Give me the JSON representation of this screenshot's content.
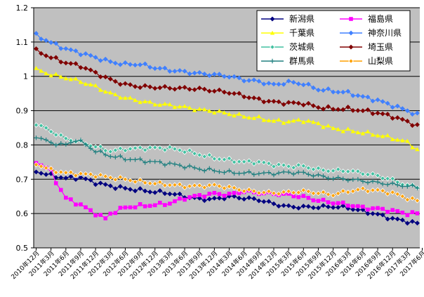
{
  "chart_data": {
    "type": "line",
    "title": "",
    "xlabel": "",
    "ylabel": "",
    "ylim": [
      0.5,
      1.2
    ],
    "yticks": [
      "0.5",
      "0.6",
      "0.7",
      "0.8",
      "0.9",
      "1",
      "1.1",
      "1.2"
    ],
    "grid": true,
    "plot_background": "#c0c0c0",
    "legend_position": "top-right",
    "x_start": "2010-12",
    "n_points": 78,
    "x_tick_labels": [
      "2010年12月",
      "2011年3月",
      "2011年6月",
      "2011年9月",
      "2011年12月",
      "2012年3月",
      "2012年6月",
      "2012年9月",
      "2012年12月",
      "2013年3月",
      "2013年6月",
      "2013年9月",
      "2013年12月",
      "2014年3月",
      "2014年6月",
      "2014年9月",
      "2014年12月",
      "2015年3月",
      "2015年6月",
      "2015年9月",
      "2015年12月",
      "2016年3月",
      "2016年6月",
      "2016年9月",
      "2016年12月",
      "2017年3月",
      "2017年6月"
    ],
    "series": [
      {
        "name": "新潟県",
        "color": "#000080",
        "marker": "diamond",
        "key_values": [
          [
            0,
            0.723
          ],
          [
            3,
            0.711
          ],
          [
            6,
            0.703
          ],
          [
            9,
            0.705
          ],
          [
            12,
            0.69
          ],
          [
            15,
            0.68
          ],
          [
            18,
            0.673
          ],
          [
            21,
            0.668
          ],
          [
            24,
            0.663
          ],
          [
            27,
            0.659
          ],
          [
            30,
            0.65
          ],
          [
            33,
            0.642
          ],
          [
            36,
            0.642
          ],
          [
            39,
            0.649
          ],
          [
            42,
            0.645
          ],
          [
            45,
            0.64
          ],
          [
            48,
            0.628
          ],
          [
            51,
            0.62
          ],
          [
            54,
            0.619
          ],
          [
            57,
            0.619
          ],
          [
            60,
            0.62
          ],
          [
            63,
            0.617
          ],
          [
            66,
            0.607
          ],
          [
            69,
            0.597
          ],
          [
            72,
            0.585
          ],
          [
            75,
            0.577
          ],
          [
            77,
            0.571
          ]
        ]
      },
      {
        "name": "福島県",
        "color": "#ff00ff",
        "marker": "square",
        "key_values": [
          [
            0,
            0.75
          ],
          [
            3,
            0.725
          ],
          [
            4,
            0.693
          ],
          [
            6,
            0.645
          ],
          [
            9,
            0.625
          ],
          [
            12,
            0.6
          ],
          [
            14,
            0.585
          ],
          [
            15,
            0.6
          ],
          [
            18,
            0.618
          ],
          [
            21,
            0.622
          ],
          [
            24,
            0.625
          ],
          [
            27,
            0.63
          ],
          [
            30,
            0.645
          ],
          [
            33,
            0.652
          ],
          [
            36,
            0.658
          ],
          [
            39,
            0.655
          ],
          [
            42,
            0.665
          ],
          [
            45,
            0.66
          ],
          [
            48,
            0.658
          ],
          [
            51,
            0.655
          ],
          [
            54,
            0.648
          ],
          [
            57,
            0.638
          ],
          [
            60,
            0.632
          ],
          [
            63,
            0.626
          ],
          [
            66,
            0.617
          ],
          [
            69,
            0.614
          ],
          [
            72,
            0.608
          ],
          [
            75,
            0.6
          ],
          [
            77,
            0.6
          ]
        ]
      },
      {
        "name": "千葉県",
        "color": "#ffff00",
        "marker": "triangle",
        "key_values": [
          [
            0,
            1.02
          ],
          [
            3,
            1.005
          ],
          [
            6,
            0.996
          ],
          [
            9,
            0.985
          ],
          [
            12,
            0.97
          ],
          [
            15,
            0.95
          ],
          [
            18,
            0.937
          ],
          [
            21,
            0.928
          ],
          [
            24,
            0.92
          ],
          [
            27,
            0.916
          ],
          [
            30,
            0.91
          ],
          [
            33,
            0.903
          ],
          [
            36,
            0.898
          ],
          [
            39,
            0.891
          ],
          [
            42,
            0.883
          ],
          [
            45,
            0.878
          ],
          [
            48,
            0.87
          ],
          [
            51,
            0.868
          ],
          [
            54,
            0.872
          ],
          [
            57,
            0.862
          ],
          [
            60,
            0.848
          ],
          [
            63,
            0.842
          ],
          [
            66,
            0.836
          ],
          [
            69,
            0.829
          ],
          [
            72,
            0.82
          ],
          [
            75,
            0.808
          ],
          [
            77,
            0.787
          ]
        ]
      },
      {
        "name": "神奈川県",
        "color": "#4080ff",
        "marker": "diamond",
        "key_values": [
          [
            0,
            1.12
          ],
          [
            3,
            1.098
          ],
          [
            6,
            1.08
          ],
          [
            9,
            1.068
          ],
          [
            12,
            1.055
          ],
          [
            15,
            1.042
          ],
          [
            18,
            1.035
          ],
          [
            21,
            1.035
          ],
          [
            24,
            1.025
          ],
          [
            27,
            1.018
          ],
          [
            30,
            1.013
          ],
          [
            33,
            1.008
          ],
          [
            36,
            1.005
          ],
          [
            39,
            1.0
          ],
          [
            42,
            0.99
          ],
          [
            45,
            0.985
          ],
          [
            48,
            0.975
          ],
          [
            51,
            0.983
          ],
          [
            54,
            0.978
          ],
          [
            57,
            0.962
          ],
          [
            60,
            0.957
          ],
          [
            63,
            0.952
          ],
          [
            66,
            0.94
          ],
          [
            69,
            0.93
          ],
          [
            72,
            0.915
          ],
          [
            75,
            0.9
          ],
          [
            77,
            0.888
          ]
        ]
      },
      {
        "name": "茨城県",
        "color": "#40c0a0",
        "marker": "diamond-open",
        "key_values": [
          [
            0,
            0.862
          ],
          [
            3,
            0.84
          ],
          [
            6,
            0.818
          ],
          [
            8,
            0.812
          ],
          [
            9,
            0.808
          ],
          [
            12,
            0.795
          ],
          [
            15,
            0.782
          ],
          [
            18,
            0.788
          ],
          [
            21,
            0.79
          ],
          [
            24,
            0.791
          ],
          [
            27,
            0.79
          ],
          [
            30,
            0.783
          ],
          [
            33,
            0.772
          ],
          [
            36,
            0.762
          ],
          [
            39,
            0.756
          ],
          [
            42,
            0.75
          ],
          [
            45,
            0.75
          ],
          [
            48,
            0.742
          ],
          [
            51,
            0.738
          ],
          [
            54,
            0.738
          ],
          [
            57,
            0.728
          ],
          [
            60,
            0.725
          ],
          [
            63,
            0.725
          ],
          [
            66,
            0.718
          ],
          [
            69,
            0.71
          ],
          [
            72,
            0.698
          ],
          [
            75,
            0.682
          ],
          [
            77,
            0.678
          ]
        ]
      },
      {
        "name": "埼玉県",
        "color": "#800000",
        "marker": "diamond",
        "key_values": [
          [
            0,
            1.075
          ],
          [
            3,
            1.055
          ],
          [
            6,
            1.04
          ],
          [
            9,
            1.03
          ],
          [
            12,
            1.01
          ],
          [
            15,
            0.99
          ],
          [
            18,
            0.976
          ],
          [
            21,
            0.97
          ],
          [
            24,
            0.968
          ],
          [
            27,
            0.966
          ],
          [
            30,
            0.965
          ],
          [
            33,
            0.963
          ],
          [
            36,
            0.958
          ],
          [
            39,
            0.953
          ],
          [
            42,
            0.943
          ],
          [
            45,
            0.932
          ],
          [
            48,
            0.925
          ],
          [
            51,
            0.922
          ],
          [
            54,
            0.921
          ],
          [
            57,
            0.91
          ],
          [
            60,
            0.905
          ],
          [
            63,
            0.905
          ],
          [
            66,
            0.9
          ],
          [
            69,
            0.893
          ],
          [
            72,
            0.883
          ],
          [
            75,
            0.868
          ],
          [
            77,
            0.856
          ]
        ]
      },
      {
        "name": "群馬県",
        "color": "#208080",
        "marker": "cross",
        "key_values": [
          [
            0,
            0.825
          ],
          [
            3,
            0.806
          ],
          [
            6,
            0.8
          ],
          [
            8,
            0.815
          ],
          [
            9,
            0.81
          ],
          [
            12,
            0.782
          ],
          [
            15,
            0.768
          ],
          [
            18,
            0.76
          ],
          [
            21,
            0.755
          ],
          [
            24,
            0.75
          ],
          [
            27,
            0.745
          ],
          [
            30,
            0.738
          ],
          [
            33,
            0.73
          ],
          [
            36,
            0.725
          ],
          [
            39,
            0.72
          ],
          [
            42,
            0.718
          ],
          [
            45,
            0.717
          ],
          [
            48,
            0.717
          ],
          [
            51,
            0.72
          ],
          [
            54,
            0.718
          ],
          [
            57,
            0.71
          ],
          [
            60,
            0.703
          ],
          [
            63,
            0.7
          ],
          [
            66,
            0.695
          ],
          [
            69,
            0.69
          ],
          [
            72,
            0.685
          ],
          [
            75,
            0.68
          ],
          [
            77,
            0.676
          ]
        ]
      },
      {
        "name": "山梨県",
        "color": "#ffa000",
        "marker": "diamond-open",
        "key_values": [
          [
            0,
            0.745
          ],
          [
            3,
            0.727
          ],
          [
            6,
            0.718
          ],
          [
            9,
            0.715
          ],
          [
            12,
            0.712
          ],
          [
            15,
            0.705
          ],
          [
            18,
            0.7
          ],
          [
            21,
            0.693
          ],
          [
            24,
            0.688
          ],
          [
            27,
            0.684
          ],
          [
            30,
            0.68
          ],
          [
            33,
            0.68
          ],
          [
            36,
            0.682
          ],
          [
            39,
            0.676
          ],
          [
            42,
            0.668
          ],
          [
            45,
            0.663
          ],
          [
            48,
            0.66
          ],
          [
            51,
            0.662
          ],
          [
            54,
            0.665
          ],
          [
            57,
            0.66
          ],
          [
            60,
            0.655
          ],
          [
            63,
            0.665
          ],
          [
            66,
            0.67
          ],
          [
            69,
            0.667
          ],
          [
            72,
            0.66
          ],
          [
            75,
            0.645
          ],
          [
            77,
            0.637
          ]
        ]
      }
    ]
  }
}
